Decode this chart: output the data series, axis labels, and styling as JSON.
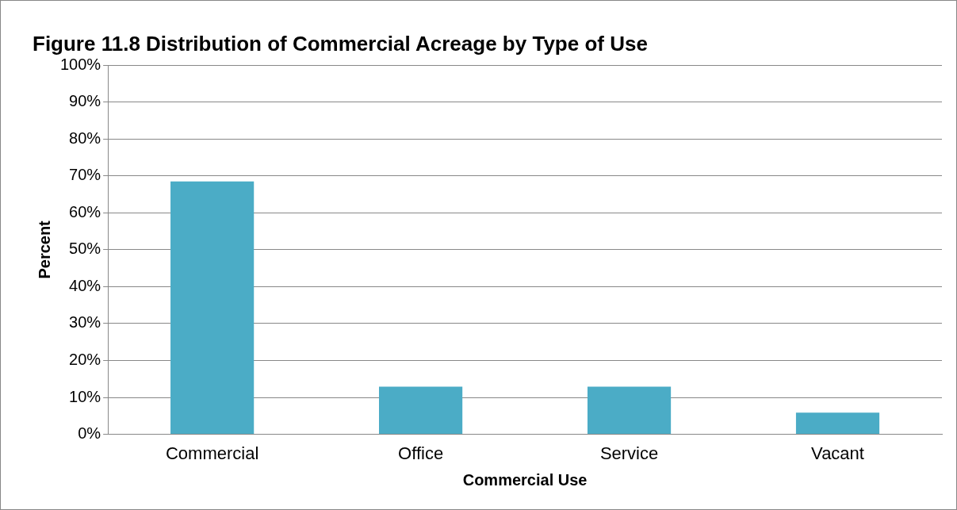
{
  "chart_data": {
    "type": "bar",
    "title": "Figure 11.8 Distribution of Commercial Acreage by Type of Use",
    "xlabel": "Commercial Use",
    "ylabel": "Percent",
    "categories": [
      "Commercial",
      "Office",
      "Service",
      "Vacant"
    ],
    "values": [
      68.5,
      12.9,
      12.9,
      5.9
    ],
    "color": "#4bacc6",
    "ylim": [
      0,
      100
    ],
    "yticks": [
      {
        "value": 0,
        "label": "0%"
      },
      {
        "value": 10,
        "label": "10%"
      },
      {
        "value": 20,
        "label": "20%"
      },
      {
        "value": 30,
        "label": "30%"
      },
      {
        "value": 40,
        "label": "40%"
      },
      {
        "value": 50,
        "label": "50%"
      },
      {
        "value": 60,
        "label": "60%"
      },
      {
        "value": 70,
        "label": "70%"
      },
      {
        "value": 80,
        "label": "80%"
      },
      {
        "value": 90,
        "label": "90%"
      },
      {
        "value": 100,
        "label": "100%"
      }
    ],
    "grid": "y",
    "legend": false
  }
}
